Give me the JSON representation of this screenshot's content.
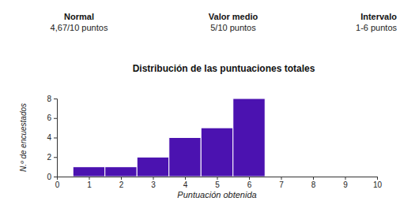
{
  "chart_data": {
    "type": "histogram",
    "title": "Distribución de las puntuaciones totales",
    "annotations": [
      {
        "label": "Normal",
        "text": "4,67/10 puntos"
      },
      {
        "label": "Valor medio",
        "text": "5/10 puntos"
      },
      {
        "label": "Intervalo",
        "text": "1-6 puntos"
      }
    ],
    "x_label": "Puntuación obtenida",
    "y_label": "N.º de encuestados",
    "bins": [
      0.5,
      1.5,
      2.5,
      3.5,
      4.5,
      5.5,
      6.5
    ],
    "values": [
      1,
      1,
      2,
      4,
      5,
      8
    ],
    "color": "#4b12b0",
    "xlim": [
      0,
      10
    ],
    "xticks": [
      0,
      1,
      2,
      3,
      4,
      5,
      6,
      7,
      8,
      9,
      10
    ],
    "ylim": [
      0,
      8
    ],
    "yticks": [
      0,
      2,
      4,
      6,
      8
    ],
    "grid": false
  }
}
